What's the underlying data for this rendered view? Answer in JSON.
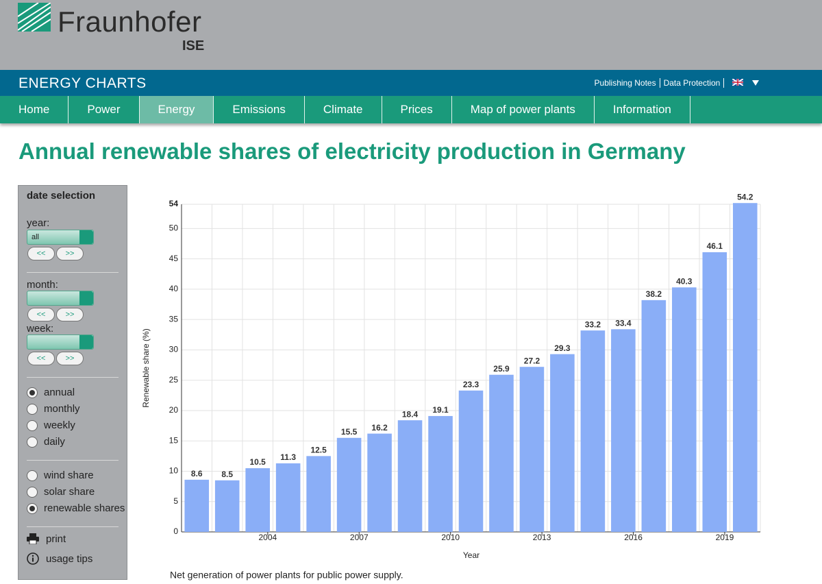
{
  "header": {
    "logo": "Fraunhofer",
    "logo_sub": "ISE",
    "site": "ENERGY CHARTS",
    "links": [
      "Publishing Notes",
      "Data Protection"
    ]
  },
  "nav": [
    "Home",
    "Power",
    "Energy",
    "Emissions",
    "Climate",
    "Prices",
    "Map of power plants",
    "Information"
  ],
  "nav_active": 2,
  "page_title": "Annual renewable shares of electricity production in Germany",
  "sidebar": {
    "heading": "date selection",
    "year_label": "year:",
    "year_value": "all",
    "prev": "<<",
    "next": ">>",
    "month_label": "month:",
    "week_label": "week:",
    "intervals": [
      "annual",
      "monthly",
      "weekly",
      "daily"
    ],
    "interval_selected": 0,
    "shares": [
      "wind share",
      "solar share",
      "renewable shares"
    ],
    "share_selected": 2,
    "print": "print",
    "tips": "usage tips"
  },
  "chart_data": {
    "type": "bar",
    "y_label": "Renewable share (%)",
    "x_label": "Year",
    "caption": "Net generation of power plants for public power supply.",
    "categories": [
      null,
      null,
      "2004",
      null,
      null,
      "2007",
      null,
      null,
      "2010",
      null,
      null,
      "2013",
      null,
      null,
      "2016",
      null,
      null,
      "2019",
      null
    ],
    "values": [
      8.6,
      8.5,
      10.5,
      11.3,
      12.5,
      15.5,
      16.2,
      18.4,
      19.1,
      23.3,
      25.9,
      27.2,
      29.3,
      33.2,
      33.4,
      38.2,
      40.3,
      46.1,
      54.2
    ],
    "color": "#8aaef7",
    "ylim": [
      0,
      54
    ],
    "yticks": [
      0,
      5,
      10,
      15,
      20,
      25,
      30,
      35,
      40,
      45,
      50,
      54
    ],
    "grid": true
  }
}
